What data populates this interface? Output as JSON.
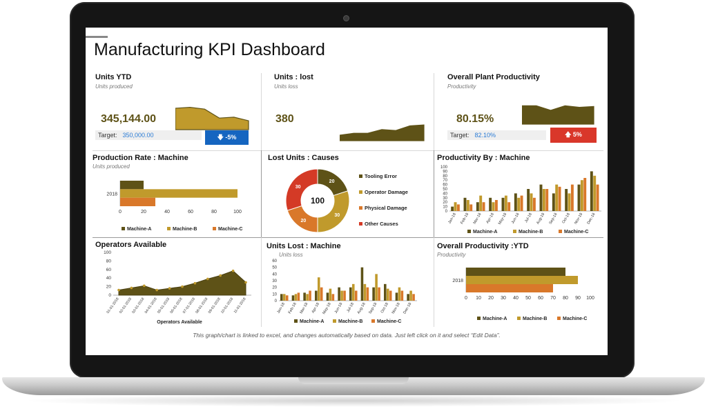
{
  "page": {
    "title": "Manufacturing KPI Dashboard",
    "footer": "This graph/chart is linked to excel, and changes automatically based on data. Just left click on it and select “Edit Data”."
  },
  "colors": {
    "olive": "#5e5217",
    "gold": "#c09a2c",
    "orange": "#d9782a",
    "red": "#d43a26",
    "blue": "#1565c0",
    "badge_red": "#d9372a"
  },
  "kpis": {
    "units_ytd": {
      "title": "Units YTD",
      "subtitle": "Units produced",
      "value": "345,144.00",
      "target_label": "Target:",
      "target_value": "350,000.00",
      "badge": "-5%"
    },
    "units_lost": {
      "title": "Units : lost",
      "subtitle": "Units loss",
      "value": "380"
    },
    "productivity": {
      "title": "Overall Plant Productivity",
      "subtitle": "Productivity",
      "value": "80.15%",
      "target_label": "Target:",
      "target_value": "82.10%",
      "badge": "5%"
    }
  },
  "chart_data": [
    {
      "id": "units_ytd_spark",
      "type": "area",
      "values": [
        24,
        25,
        23,
        13,
        14,
        10
      ]
    },
    {
      "id": "units_lost_spark",
      "type": "area",
      "values": [
        6,
        8,
        8,
        12,
        11,
        16,
        17
      ]
    },
    {
      "id": "productivity_spark",
      "type": "area",
      "values": [
        24,
        24,
        18,
        24,
        22,
        23
      ]
    },
    {
      "id": "production_rate",
      "type": "bar",
      "title": "Production Rate : Machine",
      "subtitle": "Units produced",
      "categories": [
        "2018"
      ],
      "xlim": [
        0,
        100
      ],
      "xticks": [
        "0",
        "20",
        "40",
        "60",
        "80",
        "100"
      ],
      "series": [
        {
          "name": "Machine-A",
          "values": [
            20
          ]
        },
        {
          "name": "Machine-B",
          "values": [
            100
          ]
        },
        {
          "name": "Machine-C",
          "values": [
            30
          ]
        }
      ]
    },
    {
      "id": "lost_causes",
      "type": "pie",
      "title": "Lost Units : Causes",
      "center": "100",
      "labels": [
        "Tooling Error",
        "Operator Damage",
        "Physical Damage",
        "Other Causes"
      ],
      "values": [
        20,
        30,
        20,
        30
      ]
    },
    {
      "id": "productivity_machine",
      "type": "bar",
      "title": "Productivity By : Machine",
      "categories": [
        "Jan-18",
        "Feb-18",
        "Mar-18",
        "Apr-18",
        "May-18",
        "Jun-18",
        "Jul-18",
        "Aug-18",
        "Sep-18",
        "Oct-18",
        "Nov-18",
        "Dec-18"
      ],
      "ylim": [
        0,
        100
      ],
      "yticks": [
        "0",
        "10",
        "20",
        "30",
        "40",
        "50",
        "60",
        "70",
        "80",
        "90",
        "100"
      ],
      "series": [
        {
          "name": "Machine-A",
          "values": [
            10,
            30,
            20,
            30,
            30,
            40,
            50,
            60,
            40,
            50,
            60,
            90
          ]
        },
        {
          "name": "Machine-B",
          "values": [
            20,
            25,
            35,
            20,
            35,
            30,
            40,
            50,
            60,
            40,
            70,
            80
          ]
        },
        {
          "name": "Machine-C",
          "values": [
            15,
            15,
            20,
            25,
            20,
            35,
            30,
            50,
            55,
            60,
            75,
            60
          ]
        }
      ]
    },
    {
      "id": "operators",
      "type": "area",
      "title": "Operators Available",
      "xlabel": "Operators Available",
      "categories": [
        "01-01-2018",
        "02-01-2018",
        "03-01-2018",
        "04-01-2018",
        "05-01-2018",
        "06-01-2018",
        "07-01-2018",
        "08-01-2018",
        "09-01-2018",
        "10-01-2018",
        "11-01-2018"
      ],
      "values": [
        12,
        17,
        22,
        12,
        16,
        20,
        28,
        38,
        46,
        57,
        30
      ],
      "ylim": [
        0,
        100
      ],
      "yticks": [
        "0",
        "20",
        "40",
        "60",
        "80",
        "100"
      ]
    },
    {
      "id": "units_lost_machine",
      "type": "bar",
      "title": "Units Lost : Machine",
      "subtitle": "Units loss",
      "categories": [
        "Jan-18",
        "Feb-18",
        "Mar-18",
        "Apr-18",
        "May-18",
        "Jun-18",
        "Jul-18",
        "Aug-18",
        "Sep-18",
        "Oct-18",
        "Nov-18",
        "Dec-18"
      ],
      "ylim": [
        0,
        60
      ],
      "yticks": [
        "0",
        "10",
        "20",
        "30",
        "40",
        "50",
        "60"
      ],
      "series": [
        {
          "name": "Machine-A",
          "values": [
            10,
            8,
            12,
            15,
            12,
            20,
            20,
            50,
            20,
            25,
            12,
            10
          ]
        },
        {
          "name": "Machine-B",
          "values": [
            10,
            10,
            10,
            35,
            18,
            15,
            25,
            25,
            40,
            18,
            20,
            15
          ]
        },
        {
          "name": "Machine-C",
          "values": [
            8,
            12,
            15,
            20,
            10,
            15,
            15,
            20,
            20,
            15,
            15,
            10
          ]
        }
      ]
    },
    {
      "id": "overall_productivity_ytd",
      "type": "bar",
      "title": "Overall Productivity :YTD",
      "subtitle": "Productivity",
      "categories": [
        "2018"
      ],
      "xlim": [
        0,
        100
      ],
      "xticks": [
        "0",
        "10",
        "20",
        "30",
        "40",
        "50",
        "60",
        "70",
        "80",
        "90",
        "100"
      ],
      "series": [
        {
          "name": "Machine-A",
          "values": [
            80
          ]
        },
        {
          "name": "Machine-B",
          "values": [
            90
          ]
        },
        {
          "name": "Machine-C",
          "values": [
            70
          ]
        }
      ]
    }
  ]
}
